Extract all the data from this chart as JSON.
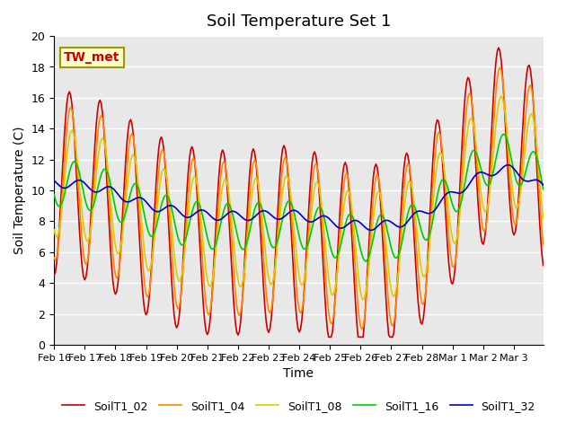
{
  "title": "Soil Temperature Set 1",
  "xlabel": "Time",
  "ylabel": "Soil Temperature (C)",
  "ylim": [
    0,
    20
  ],
  "yticks": [
    0,
    2,
    4,
    6,
    8,
    10,
    12,
    14,
    16,
    18,
    20
  ],
  "xtick_labels": [
    "Feb 16",
    "Feb 17",
    "Feb 18",
    "Feb 19",
    "Feb 20",
    "Feb 21",
    "Feb 22",
    "Feb 23",
    "Feb 24",
    "Feb 25",
    "Feb 26",
    "Feb 27",
    "Feb 28",
    "Mar 1",
    "Mar 2",
    "Mar 3"
  ],
  "bg_color": "#e8e8e8",
  "grid_color": "#ffffff",
  "annotation_text": "TW_met",
  "annotation_bg": "#ffffcc",
  "annotation_fg": "#cc0000",
  "annotation_border": "#999900",
  "series_colors": {
    "SoilT1_02": "#cc0000",
    "SoilT1_04": "#ff8800",
    "SoilT1_08": "#ddcc00",
    "SoilT1_16": "#00cc00",
    "SoilT1_32": "#0000cc"
  }
}
